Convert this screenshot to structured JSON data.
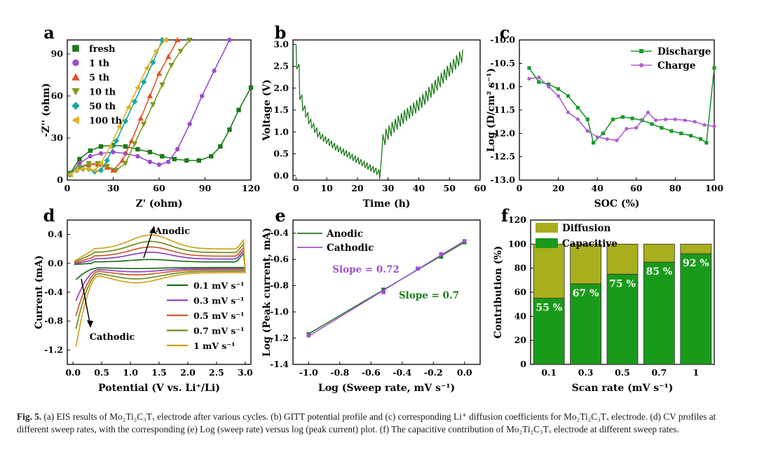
{
  "panels": [
    {
      "letter": "a",
      "chart_data": {
        "type": "scatter",
        "xlabel": "Z' (ohm)",
        "ylabel": "-Z'' (ohm)",
        "xlim": [
          0,
          120
        ],
        "ylim": [
          0,
          100
        ],
        "xticks": [
          0,
          30,
          60,
          90,
          120
        ],
        "yticks": [
          0,
          30,
          60,
          90
        ],
        "legend": "top-left",
        "series": [
          {
            "name": "fresh",
            "color": "#1b7a1b",
            "marker": "square",
            "x": [
              2,
              8,
              15,
              22,
              30,
              38,
              46,
              54,
              62,
              70,
              78,
              86,
              94,
              100,
              106,
              112,
              120
            ],
            "y": [
              5,
              15,
              21,
              24,
              25,
              24,
              22,
              20,
              17,
              15,
              14,
              14,
              17,
              24,
              36,
              50,
              66
            ]
          },
          {
            "name": "1 th",
            "color": "#9b4dca",
            "marker": "circle",
            "x": [
              2,
              8,
              15,
              22,
              30,
              38,
              46,
              54,
              60,
              66,
              72,
              80,
              88,
              96,
              106
            ],
            "y": [
              4,
              12,
              17,
              19,
              20,
              19,
              17,
              13,
              11,
              13,
              22,
              40,
              60,
              78,
              100
            ]
          },
          {
            "name": "5 th",
            "color": "#e0522a",
            "marker": "triangle-up",
            "x": [
              2,
              8,
              14,
              20,
              26,
              30,
              36,
              42,
              48,
              54,
              60,
              66,
              72
            ],
            "y": [
              4,
              9,
              11,
              11,
              9,
              7,
              14,
              28,
              44,
              60,
              76,
              88,
              100
            ]
          },
          {
            "name": "10 th",
            "color": "#7d9a1a",
            "marker": "triangle-down",
            "x": [
              2,
              8,
              14,
              20,
              26,
              32,
              38,
              44,
              50,
              56,
              62,
              68,
              74,
              80
            ],
            "y": [
              4,
              9,
              12,
              12,
              10,
              7,
              12,
              26,
              40,
              54,
              68,
              82,
              92,
              100
            ]
          },
          {
            "name": "50 th",
            "color": "#1aa5a5",
            "marker": "diamond",
            "x": [
              2,
              6,
              10,
              14,
              18,
              22,
              26,
              32,
              38,
              44,
              50,
              56,
              62
            ],
            "y": [
              4,
              7,
              8,
              8,
              6,
              7,
              14,
              28,
              42,
              56,
              70,
              84,
              100
            ]
          },
          {
            "name": "100 th",
            "color": "#e0b020",
            "marker": "triangle-left",
            "x": [
              2,
              6,
              10,
              14,
              18,
              22,
              28,
              34,
              40,
              46,
              52,
              58,
              64
            ],
            "y": [
              4,
              7,
              8,
              8,
              7,
              12,
              24,
              38,
              52,
              66,
              80,
              92,
              100
            ]
          }
        ]
      }
    },
    {
      "letter": "b",
      "chart_data": {
        "type": "line",
        "xlabel": "Time (h)",
        "ylabel": "Voltage (V)",
        "xlim": [
          -1,
          60
        ],
        "ylim": [
          -0.1,
          3.1
        ],
        "xticks": [
          0,
          10,
          20,
          30,
          40,
          50,
          60
        ],
        "yticks": [
          0.0,
          0.5,
          1.0,
          1.5,
          2.0,
          2.5,
          3.0
        ],
        "series": [
          {
            "name": "",
            "color": "#1b7a1b",
            "discharge_rest": [
              3.0,
              2.55,
              1.85,
              1.6,
              1.45,
              1.3,
              1.2,
              1.1,
              1.0,
              0.95,
              0.9,
              0.85,
              0.8,
              0.75,
              0.7,
              0.66,
              0.62,
              0.58,
              0.54,
              0.5,
              0.46,
              0.42,
              0.38,
              0.34,
              0.3,
              0.26,
              0.22,
              0.18,
              0.14
            ],
            "charge_rest": [
              0.55,
              0.7,
              0.82,
              0.9,
              0.98,
              1.05,
              1.12,
              1.18,
              1.25,
              1.3,
              1.36,
              1.42,
              1.48,
              1.55,
              1.62,
              1.7,
              1.78,
              1.86,
              1.94,
              2.02,
              2.1,
              2.18,
              2.26,
              2.34,
              2.42,
              2.5,
              2.58
            ],
            "t_switch": 28,
            "t_end": 55
          }
        ]
      }
    },
    {
      "letter": "c",
      "chart_data": {
        "type": "line",
        "xlabel": "SOC (%)",
        "ylabel": "Log (D/cm² s⁻¹)",
        "xlim": [
          0,
          100
        ],
        "ylim": [
          -13.0,
          -10.0
        ],
        "xticks": [
          0,
          20,
          40,
          60,
          80,
          100
        ],
        "yticks": [
          -13.0,
          -12.5,
          -12.0,
          -11.5,
          -11.0,
          -10.5,
          -10.0
        ],
        "legend": "top-right",
        "series": [
          {
            "name": "Discharge",
            "color": "#1b9a2a",
            "marker": "square",
            "x": [
              5,
              10,
              15,
              20,
              25,
              30,
              35,
              38,
              43,
              48,
              53,
              58,
              63,
              68,
              73,
              78,
              83,
              88,
              93,
              96,
              100
            ],
            "y": [
              -10.6,
              -10.9,
              -10.95,
              -11.05,
              -11.2,
              -11.45,
              -11.7,
              -12.2,
              -12.0,
              -11.7,
              -11.65,
              -11.68,
              -11.72,
              -11.8,
              -11.88,
              -11.95,
              -12.0,
              -12.05,
              -12.12,
              -12.2,
              -10.6
            ]
          },
          {
            "name": "Charge",
            "color": "#b060d0",
            "marker": "circle",
            "x": [
              5,
              10,
              15,
              20,
              25,
              30,
              35,
              40,
              45,
              50,
              55,
              60,
              66,
              70,
              75,
              80,
              85,
              90,
              95,
              100
            ],
            "y": [
              -10.83,
              -10.8,
              -11.0,
              -11.2,
              -11.55,
              -11.7,
              -11.95,
              -12.08,
              -12.12,
              -12.15,
              -11.9,
              -11.88,
              -11.55,
              -11.72,
              -11.7,
              -11.7,
              -11.72,
              -11.75,
              -11.82,
              -11.85
            ]
          }
        ]
      }
    },
    {
      "letter": "d",
      "chart_data": {
        "type": "line",
        "xlabel": "Potential (V vs. Li⁺/Li)",
        "ylabel": "Current (mA)",
        "xlim": [
          -0.1,
          3.1
        ],
        "ylim": [
          -1.4,
          0.6
        ],
        "xticks": [
          0.0,
          0.5,
          1.0,
          1.5,
          2.0,
          2.5,
          3.0
        ],
        "yticks": [
          -1.2,
          -0.8,
          -0.4,
          0.0,
          0.4
        ],
        "legend": "bottom-right",
        "annotations": [
          "Anodic",
          "Cathodic"
        ],
        "series": [
          {
            "name": "0.1 mV s⁻¹",
            "color": "#1e6e1e",
            "anodic_peak": 0.06,
            "cathodic_min": -0.25,
            "plateau": 0.02
          },
          {
            "name": "0.3 mV s⁻¹",
            "color": "#9040c0",
            "anodic_peak": 0.17,
            "cathodic_min": -0.58,
            "plateau": 0.06
          },
          {
            "name": "0.5 mV s⁻¹",
            "color": "#d05a30",
            "anodic_peak": 0.23,
            "cathodic_min": -0.82,
            "plateau": 0.1
          },
          {
            "name": "0.7 mV s⁻¹",
            "color": "#6e8e1e",
            "anodic_peak": 0.28,
            "cathodic_min": -1.02,
            "plateau": 0.15
          },
          {
            "name": "1   mV s⁻¹",
            "color": "#d0a020",
            "anodic_peak": 0.35,
            "cathodic_min": -1.3,
            "plateau": 0.2
          }
        ]
      }
    },
    {
      "letter": "e",
      "chart_data": {
        "type": "line",
        "xlabel": "Log (Sweep rate, mV s⁻¹)",
        "ylabel": "Log (Peak current, mA)",
        "xlim": [
          -1.1,
          0.1
        ],
        "ylim": [
          -1.4,
          -0.3
        ],
        "xticks": [
          -1.0,
          -0.8,
          -0.6,
          -0.4,
          -0.2,
          0.0
        ],
        "yticks": [
          -1.4,
          -1.2,
          -1.0,
          -0.8,
          -0.6,
          -0.4
        ],
        "legend": "top-left",
        "annotations": [
          "Slope = 0.72",
          "Slope = 0.7"
        ],
        "series": [
          {
            "name": "Anodic",
            "color": "#1b7a1b",
            "marker": "square",
            "x": [
              -1.0,
              -0.52,
              -0.3,
              -0.15,
              0.0
            ],
            "y": [
              -1.17,
              -0.83,
              -0.67,
              -0.58,
              -0.47
            ]
          },
          {
            "name": "Cathodic",
            "color": "#a050d0",
            "marker": "square",
            "x": [
              -1.0,
              -0.52,
              -0.3,
              -0.15,
              0.0
            ],
            "y": [
              -1.18,
              -0.85,
              -0.67,
              -0.56,
              -0.46
            ]
          }
        ]
      }
    },
    {
      "letter": "f",
      "chart_data": {
        "type": "bar",
        "xlabel": "Scan rate (mV s⁻¹)",
        "ylabel": "Contribution (%)",
        "ylim": [
          0,
          120
        ],
        "yticks": [
          0,
          20,
          40,
          60,
          80,
          100,
          120
        ],
        "categories": [
          "0.1",
          "0.3",
          "0.5",
          "0.7",
          "1"
        ],
        "legend": "top-left",
        "series": [
          {
            "name": "Capacitive",
            "color": "#1a9a1a",
            "values": [
              55,
              67,
              75,
              85,
              92
            ],
            "labels": [
              "55 %",
              "67 %",
              "75 %",
              "85 %",
              "92 %"
            ]
          },
          {
            "name": "Diffusion",
            "color": "#a8ae1c",
            "values": [
              45,
              33,
              25,
              15,
              8
            ]
          }
        ]
      }
    }
  ],
  "caption": {
    "fig_label": "Fig. 5.",
    "text": " (a) EIS results of Mo₂Ti₂C₃Tₓ electrode after various cycles. (b) GITT potential profile and (c) corresponding Li⁺ diffusion coefficients for Mo₂Ti₂C₃Tₓ electrode. (d) CV profiles at different sweep rates, with the corresponding (e) Log (sweep rate) versus log (peak current) plot. (f) The capacitive contribution of Mo₂Ti₂C₃Tₓ electrode at different sweep rates."
  }
}
